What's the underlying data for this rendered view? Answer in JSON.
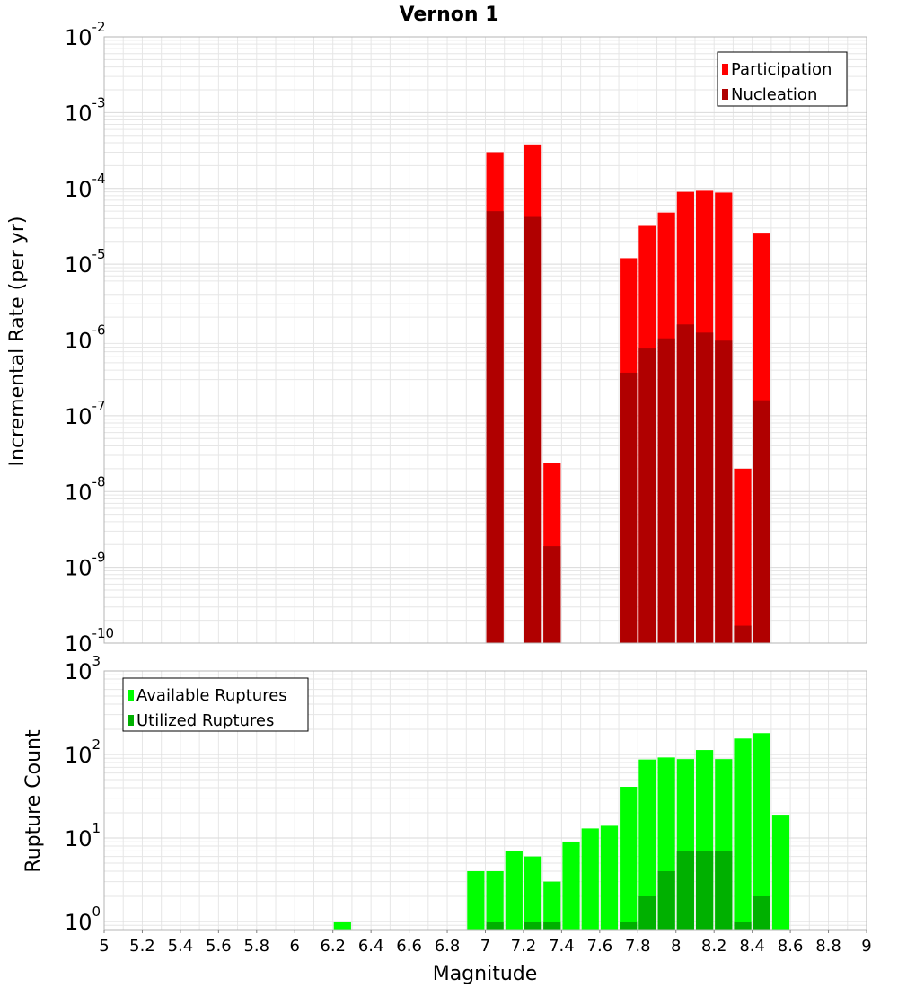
{
  "title": "Vernon 1",
  "colors": {
    "participation": "#ff0000",
    "nucleation": "#b00000",
    "available": "#00ff00",
    "utilized": "#00b000",
    "grid": "#e6e6e6",
    "frame": "#b4b4b4",
    "bar_outline": "#ffffff"
  },
  "chart_data": [
    {
      "type": "bar",
      "name": "rate-panel",
      "title": "Vernon 1",
      "xlabel": "",
      "ylabel": "Incremental Rate (per yr)",
      "xlim": [
        5,
        9
      ],
      "ylim": [
        1e-10,
        0.01
      ],
      "yscale": "log",
      "bin_width": 0.1,
      "grid": true,
      "legend_position": "top-right",
      "ytick_exponents": [
        -2,
        -3,
        -4,
        -5,
        -6,
        -7,
        -8,
        -9,
        -10
      ],
      "series": [
        {
          "name": "Participation",
          "color": "#ff0000",
          "x": [
            7.05,
            7.25,
            7.35,
            7.75,
            7.85,
            7.95,
            8.05,
            8.15,
            8.25,
            8.35,
            8.45
          ],
          "values": [
            0.0003,
            0.00038,
            2.4e-08,
            1.2e-05,
            3.2e-05,
            4.8e-05,
            9e-05,
            9.3e-05,
            8.8e-05,
            2e-08,
            2.6e-05
          ]
        },
        {
          "name": "Nucleation",
          "color": "#b00000",
          "x": [
            7.05,
            7.25,
            7.35,
            7.75,
            7.85,
            7.95,
            8.05,
            8.15,
            8.25,
            8.35,
            8.45
          ],
          "values": [
            5e-05,
            4.2e-05,
            1.9e-09,
            3.7e-07,
            7.7e-07,
            1.05e-06,
            1.6e-06,
            1.25e-06,
            9.8e-07,
            1.7e-10,
            1.6e-07
          ]
        }
      ]
    },
    {
      "type": "bar",
      "name": "count-panel",
      "xlabel": "Magnitude",
      "ylabel": "Rupture Count",
      "xlim": [
        5,
        9
      ],
      "ylim": [
        0.8,
        1000
      ],
      "yscale": "log",
      "bin_width": 0.1,
      "grid": true,
      "legend_position": "top-left",
      "xticks": [
        "5",
        "5.2",
        "5.4",
        "5.6",
        "5.8",
        "6",
        "6.2",
        "6.4",
        "6.6",
        "6.8",
        "7",
        "7.2",
        "7.4",
        "7.6",
        "7.8",
        "8",
        "8.2",
        "8.4",
        "8.6",
        "8.8",
        "9"
      ],
      "ytick_exponents": [
        3,
        2,
        1,
        0
      ],
      "series": [
        {
          "name": "Available Ruptures",
          "color": "#00ff00",
          "x": [
            6.25,
            6.95,
            7.05,
            7.15,
            7.25,
            7.35,
            7.45,
            7.55,
            7.65,
            7.75,
            7.85,
            7.95,
            8.05,
            8.15,
            8.25,
            8.35,
            8.45,
            8.55
          ],
          "values": [
            1,
            4,
            4,
            7,
            6,
            3,
            9,
            13,
            14,
            41,
            87,
            92,
            88,
            113,
            88,
            155,
            180,
            19
          ]
        },
        {
          "name": "Utilized Ruptures",
          "color": "#00b000",
          "x": [
            7.05,
            7.25,
            7.35,
            7.75,
            7.85,
            7.95,
            8.05,
            8.15,
            8.25,
            8.35,
            8.45
          ],
          "values": [
            1,
            1,
            1,
            1,
            2,
            4,
            7,
            7,
            7,
            1,
            2
          ]
        }
      ]
    }
  ]
}
